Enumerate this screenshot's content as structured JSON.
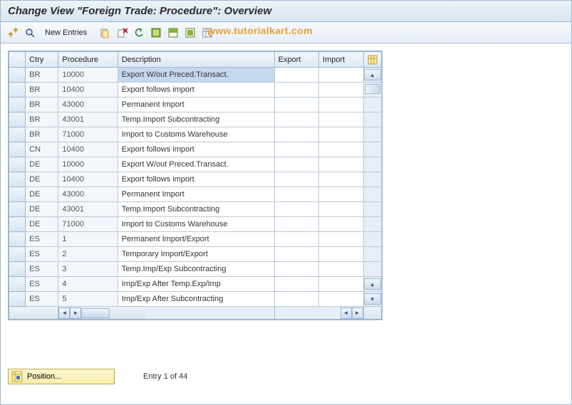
{
  "title": "Change View \"Foreign Trade: Procedure\": Overview",
  "toolbar": {
    "new_entries": "New Entries"
  },
  "watermark": "www.tutorialkart.com",
  "table": {
    "headers": {
      "sel": "",
      "ctry": "Ctry",
      "procedure": "Procedure",
      "description": "Description",
      "export": "Export",
      "import": "Import"
    },
    "rows": [
      {
        "ctry": "BR",
        "proc": "10000",
        "desc": "Export W/out Preced.Transact.",
        "exp": "",
        "imp": "",
        "sel": true
      },
      {
        "ctry": "BR",
        "proc": "10400",
        "desc": "Export follows import",
        "exp": "",
        "imp": ""
      },
      {
        "ctry": "BR",
        "proc": "43000",
        "desc": "Permanent Import",
        "exp": "",
        "imp": ""
      },
      {
        "ctry": "BR",
        "proc": "43001",
        "desc": "Temp.Import Subcontracting",
        "exp": "",
        "imp": ""
      },
      {
        "ctry": "BR",
        "proc": "71000",
        "desc": "Import to Customs Warehouse",
        "exp": "",
        "imp": ""
      },
      {
        "ctry": "CN",
        "proc": "10400",
        "desc": "Export follows import",
        "exp": "",
        "imp": ""
      },
      {
        "ctry": "DE",
        "proc": "10000",
        "desc": "Export W/out Preced.Transact.",
        "exp": "",
        "imp": ""
      },
      {
        "ctry": "DE",
        "proc": "10400",
        "desc": "Export follows import",
        "exp": "",
        "imp": ""
      },
      {
        "ctry": "DE",
        "proc": "43000",
        "desc": "Permanent Import",
        "exp": "",
        "imp": ""
      },
      {
        "ctry": "DE",
        "proc": "43001",
        "desc": "Temp.Import Subcontracting",
        "exp": "",
        "imp": ""
      },
      {
        "ctry": "DE",
        "proc": "71000",
        "desc": "Import to Customs Warehouse",
        "exp": "",
        "imp": ""
      },
      {
        "ctry": "ES",
        "proc": "1",
        "desc": "Permanent Import/Export",
        "exp": "",
        "imp": ""
      },
      {
        "ctry": "ES",
        "proc": "2",
        "desc": "Temporary Import/Export",
        "exp": "",
        "imp": ""
      },
      {
        "ctry": "ES",
        "proc": "3",
        "desc": "Temp.Imp/Exp Subcontracting",
        "exp": "",
        "imp": ""
      },
      {
        "ctry": "ES",
        "proc": "4",
        "desc": "Imp/Exp After Temp.Exp/Imp",
        "exp": "",
        "imp": ""
      },
      {
        "ctry": "ES",
        "proc": "5",
        "desc": "Imp/Exp After Subcontracting",
        "exp": "",
        "imp": ""
      }
    ]
  },
  "footer": {
    "position_label": "Position...",
    "entry_info": "Entry 1 of 44"
  },
  "colors": {
    "border": "#9bb8d3",
    "header_grad_top": "#eef3f8",
    "header_grad_bottom": "#d7e4f0",
    "selection_bg": "#c4d8ef",
    "readonly_bg": "#f3f6fa",
    "yellow_btn_top": "#fdf7d3",
    "yellow_btn_bottom": "#f7eea8",
    "watermark": "#e8a03a"
  }
}
